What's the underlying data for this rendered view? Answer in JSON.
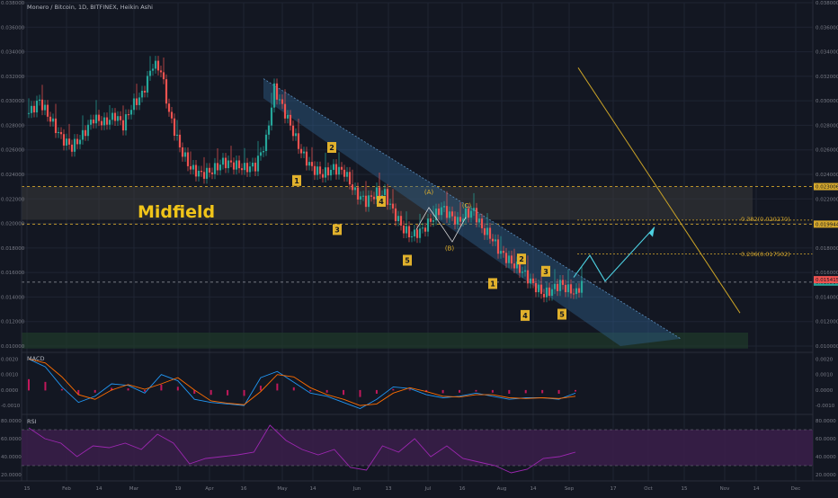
{
  "symbol_title": "Monero / Bitcoin, 1D, BITFINEX, Heikin Ashi",
  "colors": {
    "background": "#131722",
    "up": "#26a69a",
    "down": "#ef5350",
    "grid": "#1f2433",
    "axis_text": "#787b86",
    "fib": "#d4a72c",
    "wave_box": "#e1b12c",
    "channel": "#2f5f8a",
    "arrow": "#4dd0e1",
    "trendline": "#c9a227",
    "rsi_band": "#3b1f4a",
    "rsi_line": "#9c27b0",
    "macd_line": "#2196f3",
    "signal_line": "#ff6d00",
    "hist": "#c2185b",
    "midfield_text": "#f0c419",
    "green_zone": "#1f3a2a"
  },
  "price_axis": {
    "ticks": [
      "0.038000",
      "0.036000",
      "0.034000",
      "0.032000",
      "0.030000",
      "0.028000",
      "0.026000",
      "0.024000",
      "0.022000",
      "0.020000",
      "0.018000",
      "0.016000",
      "0.014000",
      "0.012000",
      "0.010000"
    ],
    "price_labels": [
      {
        "text": "0.023006",
        "kind": "fill",
        "color": "#d4a72c"
      },
      {
        "text": "0.019944",
        "kind": "fill",
        "color": "#d4a72c"
      },
      {
        "text": "0.015216",
        "kind": "fill",
        "color": "#26a69a"
      },
      {
        "text": "0.015415",
        "kind": "fill",
        "color": "#ef5350"
      }
    ]
  },
  "time_axis": [
    "15",
    "Feb",
    "14",
    "Mar",
    "19",
    "Apr",
    "16",
    "May",
    "14",
    "Jun",
    "13",
    "Jul",
    "16",
    "Aug",
    "14",
    "Sep",
    "17",
    "Oct",
    "15",
    "Nov",
    "14",
    "Dec"
  ],
  "annotations": {
    "midfield": "Midfield",
    "fib_382": "0.382(0.020270)",
    "fib_236": "0.236(0.017502)",
    "waves": [
      "1",
      "2",
      "3",
      "4",
      "5",
      "1",
      "2",
      "3",
      "4",
      "5"
    ],
    "corrective": [
      "(A)",
      "(B)",
      "(C)"
    ]
  },
  "macd": {
    "label": "MACD",
    "ticks": [
      "0.0020",
      "0.0010",
      "0.0000",
      "-0.0010"
    ]
  },
  "rsi": {
    "label": "RSI",
    "ticks": [
      "80.0000",
      "60.0000",
      "40.0000",
      "20.0000"
    ]
  },
  "chart_data": {
    "type": "candlestick",
    "title": "Monero / Bitcoin, 1D, BITFINEX, Heikin Ashi",
    "ylim": [
      0.0095,
      0.038
    ],
    "anchors": [
      [
        0,
        0.029
      ],
      [
        4,
        0.03
      ],
      [
        8,
        0.0285
      ],
      [
        12,
        0.027
      ],
      [
        16,
        0.0262
      ],
      [
        20,
        0.0272
      ],
      [
        24,
        0.0286
      ],
      [
        28,
        0.0282
      ],
      [
        32,
        0.0288
      ],
      [
        35,
        0.028
      ],
      [
        38,
        0.0295
      ],
      [
        42,
        0.0305
      ],
      [
        46,
        0.033
      ],
      [
        49,
        0.0325
      ],
      [
        52,
        0.029
      ],
      [
        56,
        0.0262
      ],
      [
        60,
        0.0245
      ],
      [
        64,
        0.024
      ],
      [
        68,
        0.0243
      ],
      [
        72,
        0.025
      ],
      [
        76,
        0.0248
      ],
      [
        80,
        0.0245
      ],
      [
        84,
        0.0247
      ],
      [
        88,
        0.0268
      ],
      [
        91,
        0.031
      ],
      [
        93,
        0.03
      ],
      [
        97,
        0.028
      ],
      [
        101,
        0.0258
      ],
      [
        105,
        0.0245
      ],
      [
        109,
        0.024
      ],
      [
        113,
        0.0245
      ],
      [
        117,
        0.0242
      ],
      [
        121,
        0.0225
      ],
      [
        125,
        0.0218
      ],
      [
        129,
        0.0225
      ],
      [
        132,
        0.0224
      ],
      [
        135,
        0.021
      ],
      [
        139,
        0.0195
      ],
      [
        142,
        0.019
      ],
      [
        146,
        0.0195
      ],
      [
        150,
        0.0205
      ],
      [
        153,
        0.0213
      ],
      [
        156,
        0.0207
      ],
      [
        159,
        0.0201
      ],
      [
        162,
        0.0208
      ],
      [
        165,
        0.021
      ],
      [
        168,
        0.0196
      ],
      [
        171,
        0.019
      ],
      [
        175,
        0.0176
      ],
      [
        179,
        0.0168
      ],
      [
        183,
        0.0161
      ],
      [
        187,
        0.015
      ],
      [
        191,
        0.0142
      ],
      [
        194,
        0.0146
      ],
      [
        197,
        0.0151
      ],
      [
        200,
        0.0146
      ],
      [
        203,
        0.0143
      ],
      [
        205,
        0.0152
      ]
    ],
    "macd": [
      0.002,
      0.0015,
      0.0002,
      -0.0008,
      -0.0004,
      0.0004,
      0.0003,
      -0.0002,
      0.001,
      0.0006,
      -0.0006,
      -0.0008,
      -0.0009,
      -0.001,
      0.0008,
      0.0012,
      0.0005,
      -0.0002,
      -0.0004,
      -0.0008,
      -0.0012,
      -0.0006,
      0.0002,
      0.0001,
      -0.0003,
      -0.0005,
      -0.0004,
      -0.0002,
      -0.0004,
      -0.0006,
      -0.0005,
      -0.0005,
      -0.0006,
      -0.0002
    ],
    "rsi": [
      72,
      60,
      55,
      40,
      52,
      50,
      55,
      48,
      65,
      55,
      32,
      38,
      40,
      42,
      45,
      75,
      58,
      48,
      42,
      48,
      28,
      25,
      52,
      45,
      60,
      40,
      52,
      38,
      34,
      30,
      22,
      26,
      38,
      40,
      45
    ],
    "fib_levels": [
      0.02027,
      0.017502
    ],
    "zone_high": [
      0.0203,
      0.023006
    ],
    "support_zone": [
      0.0098,
      0.0111
    ],
    "dashed_levels": [
      0.023006,
      0.019944,
      0.015216
    ]
  }
}
